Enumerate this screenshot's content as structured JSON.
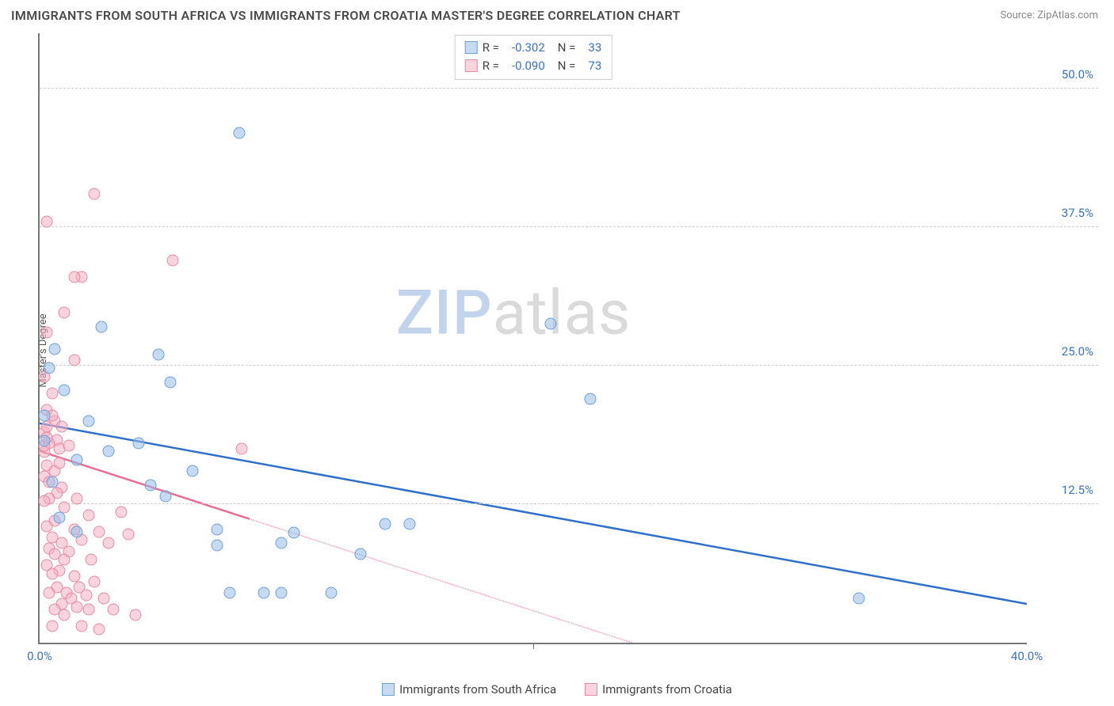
{
  "header": {
    "title": "IMMIGRANTS FROM SOUTH AFRICA VS IMMIGRANTS FROM CROATIA MASTER'S DEGREE CORRELATION CHART",
    "source_prefix": "Source: ",
    "source_link": "ZipAtlas.com"
  },
  "chart": {
    "type": "scatter",
    "ylabel": "Master's Degree",
    "watermark_a": "ZIP",
    "watermark_b": "atlas",
    "xlim": [
      0,
      40
    ],
    "ylim": [
      0,
      55
    ],
    "x_ticks": [
      {
        "v": 0,
        "label": "0.0%"
      },
      {
        "v": 40,
        "label": "40.0%"
      }
    ],
    "x_minor_tick": 20,
    "y_ticks": [
      {
        "v": 12.5,
        "label": "12.5%"
      },
      {
        "v": 25.0,
        "label": "25.0%"
      },
      {
        "v": 37.5,
        "label": "37.5%"
      },
      {
        "v": 50.0,
        "label": "50.0%"
      }
    ],
    "grid_color": "#cccccc",
    "axis_color": "#777777",
    "background": "#ffffff",
    "series": [
      {
        "name": "Immigrants from South Africa",
        "fill": "rgba(151,187,231,0.55)",
        "stroke": "#6f9fd8",
        "trend_color": "#2f6fc9",
        "trend_width": 2.5,
        "trend_dash": "none",
        "trend": {
          "x1": 0,
          "y1": 19.8,
          "x2": 40,
          "y2": 3.5
        },
        "stats": {
          "R": "-0.302",
          "N": "33"
        },
        "points": [
          [
            0.6,
            26.5
          ],
          [
            2.5,
            28.5
          ],
          [
            0.4,
            24.8
          ],
          [
            1.0,
            22.8
          ],
          [
            4.8,
            26.0
          ],
          [
            5.3,
            23.5
          ],
          [
            4.0,
            18.0
          ],
          [
            2.0,
            20.0
          ],
          [
            4.5,
            14.2
          ],
          [
            5.1,
            13.2
          ],
          [
            7.2,
            8.8
          ],
          [
            7.2,
            10.2
          ],
          [
            7.7,
            4.5
          ],
          [
            9.1,
            4.5
          ],
          [
            9.8,
            4.5
          ],
          [
            11.8,
            4.5
          ],
          [
            9.8,
            9.0
          ],
          [
            10.3,
            9.9
          ],
          [
            8.1,
            46.0
          ],
          [
            20.7,
            28.8
          ],
          [
            22.3,
            22.0
          ],
          [
            15.0,
            10.7
          ],
          [
            14.0,
            10.7
          ],
          [
            13.0,
            8.0
          ],
          [
            0.8,
            11.3
          ],
          [
            1.5,
            10.0
          ],
          [
            1.5,
            16.5
          ],
          [
            2.8,
            17.3
          ],
          [
            0.2,
            20.5
          ],
          [
            0.2,
            18.2
          ],
          [
            33.2,
            4.0
          ],
          [
            6.2,
            15.5
          ],
          [
            0.5,
            14.5
          ]
        ]
      },
      {
        "name": "Immigrants from Croatia",
        "fill": "rgba(244,177,195,0.55)",
        "stroke": "#e88aa3",
        "trend_color": "#e76f93",
        "trend_width": 2.5,
        "trend_dash": "5,5",
        "trend": {
          "x1": 0,
          "y1": 17.3,
          "x2": 24,
          "y2": 0
        },
        "stats": {
          "R": "-0.090",
          "N": "73"
        },
        "points": [
          [
            2.2,
            40.5
          ],
          [
            0.3,
            38.0
          ],
          [
            5.4,
            34.5
          ],
          [
            1.7,
            33.0
          ],
          [
            1.4,
            33.0
          ],
          [
            0.3,
            28.0
          ],
          [
            1.0,
            29.8
          ],
          [
            1.4,
            25.5
          ],
          [
            0.2,
            24.0
          ],
          [
            0.5,
            22.5
          ],
          [
            0.3,
            21.0
          ],
          [
            0.6,
            20.0
          ],
          [
            0.9,
            19.5
          ],
          [
            0.2,
            19.0
          ],
          [
            0.7,
            18.3
          ],
          [
            0.4,
            18.0
          ],
          [
            0.2,
            17.2
          ],
          [
            0.8,
            17.5
          ],
          [
            1.2,
            17.8
          ],
          [
            0.3,
            16.0
          ],
          [
            0.6,
            15.5
          ],
          [
            0.2,
            15.0
          ],
          [
            0.4,
            14.5
          ],
          [
            0.9,
            14.0
          ],
          [
            0.7,
            13.5
          ],
          [
            1.5,
            13.0
          ],
          [
            0.4,
            13.0
          ],
          [
            1.0,
            12.2
          ],
          [
            2.0,
            11.5
          ],
          [
            3.3,
            11.8
          ],
          [
            0.6,
            11.0
          ],
          [
            0.3,
            10.5
          ],
          [
            1.4,
            10.2
          ],
          [
            2.4,
            10.0
          ],
          [
            3.6,
            9.8
          ],
          [
            0.5,
            9.5
          ],
          [
            1.7,
            9.3
          ],
          [
            0.9,
            9.0
          ],
          [
            2.8,
            9.0
          ],
          [
            0.4,
            8.5
          ],
          [
            1.2,
            8.2
          ],
          [
            2.1,
            7.5
          ],
          [
            0.6,
            8.0
          ],
          [
            1.0,
            7.5
          ],
          [
            0.3,
            7.0
          ],
          [
            0.8,
            6.5
          ],
          [
            1.4,
            6.0
          ],
          [
            0.5,
            6.2
          ],
          [
            2.2,
            5.5
          ],
          [
            1.6,
            5.0
          ],
          [
            0.7,
            5.0
          ],
          [
            1.1,
            4.5
          ],
          [
            1.9,
            4.3
          ],
          [
            0.4,
            4.5
          ],
          [
            1.3,
            4.0
          ],
          [
            2.6,
            4.0
          ],
          [
            0.9,
            3.5
          ],
          [
            1.5,
            3.2
          ],
          [
            2.0,
            3.0
          ],
          [
            0.6,
            3.0
          ],
          [
            3.0,
            3.0
          ],
          [
            3.9,
            2.5
          ],
          [
            1.0,
            2.5
          ],
          [
            1.7,
            1.5
          ],
          [
            2.4,
            1.2
          ],
          [
            0.5,
            1.5
          ],
          [
            0.3,
            19.5
          ],
          [
            0.5,
            20.5
          ],
          [
            0.2,
            17.8
          ],
          [
            0.8,
            16.2
          ],
          [
            0.2,
            12.8
          ],
          [
            8.2,
            17.5
          ],
          [
            0.3,
            18.5
          ]
        ]
      }
    ]
  },
  "stats_box": {
    "rows": [
      {
        "swatch_fill": "rgba(151,187,231,0.55)",
        "swatch_stroke": "#6f9fd8",
        "R_label": "R =",
        "R": "-0.302",
        "N_label": "N =",
        "N": "33"
      },
      {
        "swatch_fill": "rgba(244,177,195,0.55)",
        "swatch_stroke": "#e88aa3",
        "R_label": "R =",
        "R": "-0.090",
        "N_label": "N =",
        "N": "73"
      }
    ]
  },
  "legend": {
    "items": [
      {
        "swatch_fill": "rgba(151,187,231,0.55)",
        "swatch_stroke": "#6f9fd8",
        "label": "Immigrants from South Africa"
      },
      {
        "swatch_fill": "rgba(244,177,195,0.55)",
        "swatch_stroke": "#e88aa3",
        "label": "Immigrants from Croatia"
      }
    ]
  }
}
